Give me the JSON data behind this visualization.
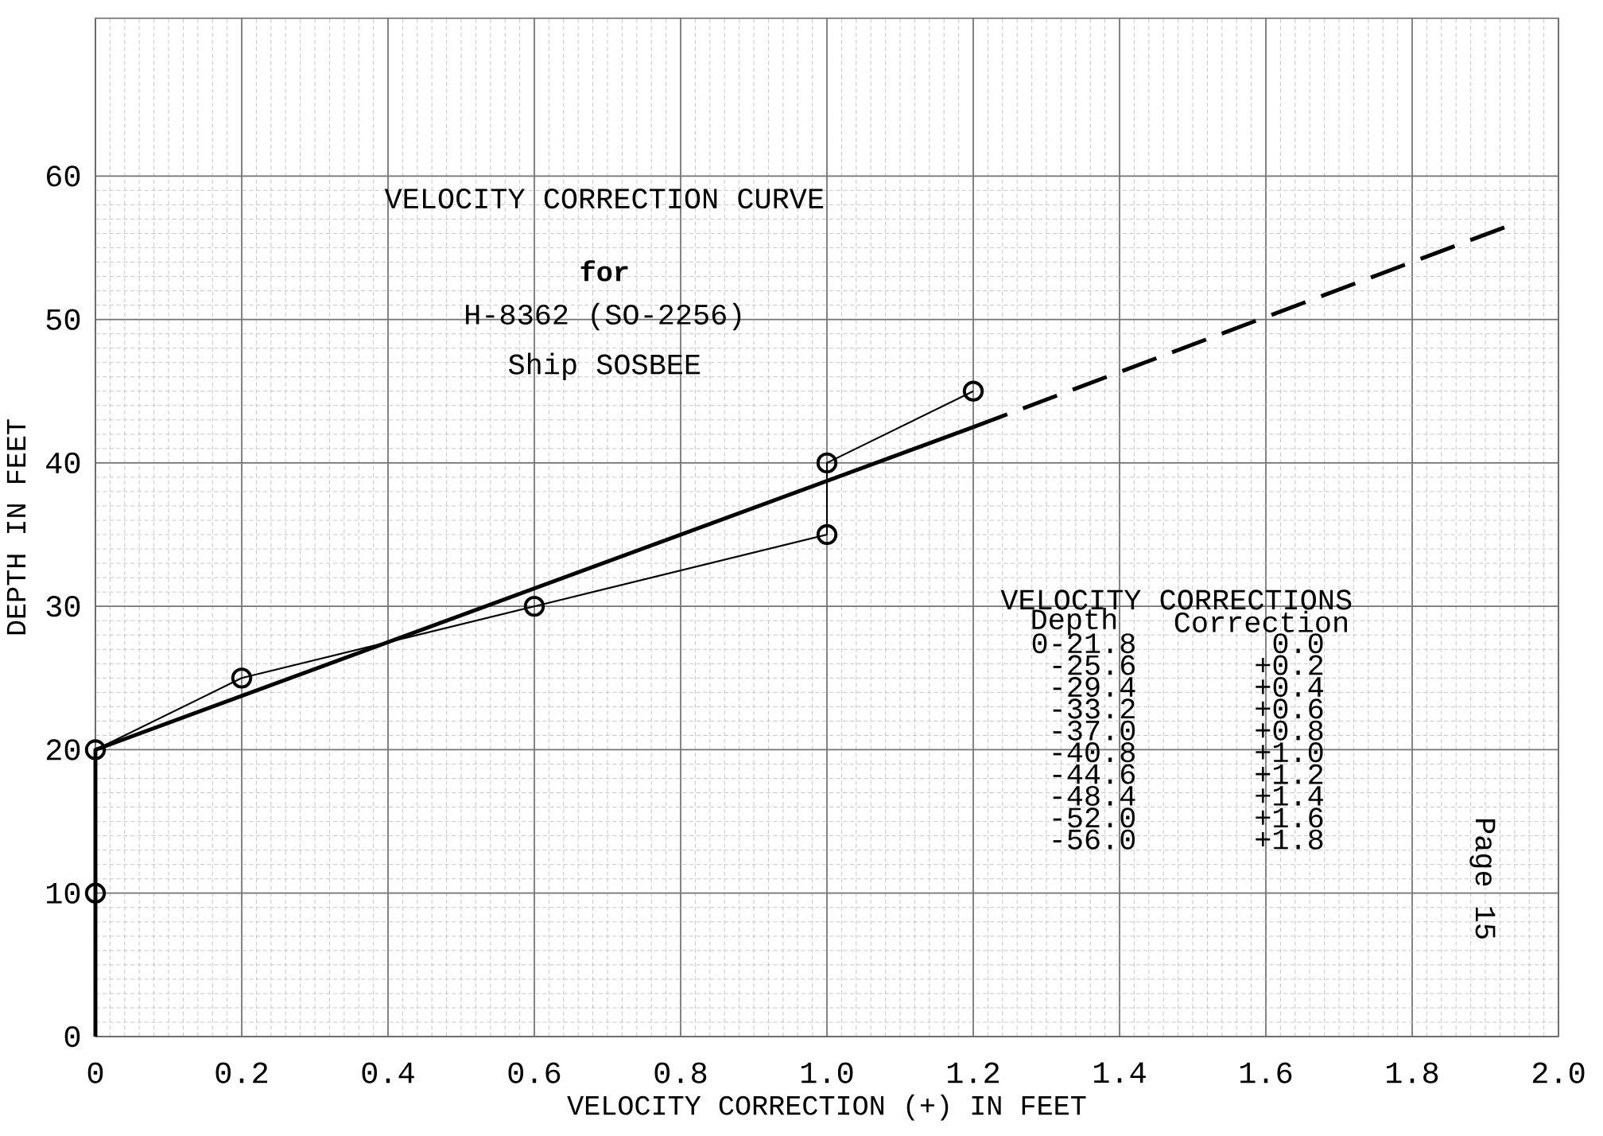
{
  "chart_data": {
    "type": "line",
    "title": "VELOCITY CORRECTION CURVE",
    "subtitle": "for",
    "xlabel": "VELOCITY CORRECTION (+) IN FEET",
    "ylabel": "DEPTH IN FEET",
    "annotations": [
      "H-8362    (SO-2256)",
      "Ship SOSBEE",
      "VELOCITY CORRECTIONS",
      "Depth",
      "Correction",
      "0-21.8",
      "0.0",
      "-25.6",
      "+0.2",
      "-29.4",
      "+0.4",
      "-33.2",
      "+0.6",
      "-37.0",
      "+0.8",
      "-40.8",
      "+1.0",
      "-44.6",
      "+1.2",
      "-48.4",
      "+1.4",
      "-52.0",
      "+1.6",
      "-56.0",
      "+1.8",
      "Page 15"
    ],
    "series": [
      {
        "color": "#000000",
        "marker": "circle",
        "line_style": "solid",
        "x": [
          0,
          0,
          0.2,
          0.6,
          1.0,
          1.0,
          1.2
        ],
        "values": [
          10,
          20,
          25,
          30,
          35,
          40,
          45
        ]
      },
      {
        "color": "#000000",
        "marker": "none",
        "line_style": "solid",
        "x": [
          0,
          0,
          1.2
        ],
        "values": [
          0,
          20,
          42.5
        ]
      },
      {
        "color": "#000000",
        "marker": "none",
        "line_style": "dashed",
        "x": [
          1.2,
          1.93
        ],
        "values": [
          42.5,
          56.5
        ]
      }
    ],
    "xlim": [
      0,
      2.0
    ],
    "ylim": [
      0,
      71
    ],
    "xticks": [
      0,
      0.2,
      0.4,
      0.6,
      0.8,
      {
        "value": 1.0,
        "label": "1.0"
      },
      1.2,
      1.4,
      1.6,
      1.8,
      {
        "value": 2.0,
        "label": "2.0"
      }
    ],
    "yticks": [
      0,
      10,
      20,
      30,
      40,
      50,
      60
    ],
    "grid": true
  }
}
